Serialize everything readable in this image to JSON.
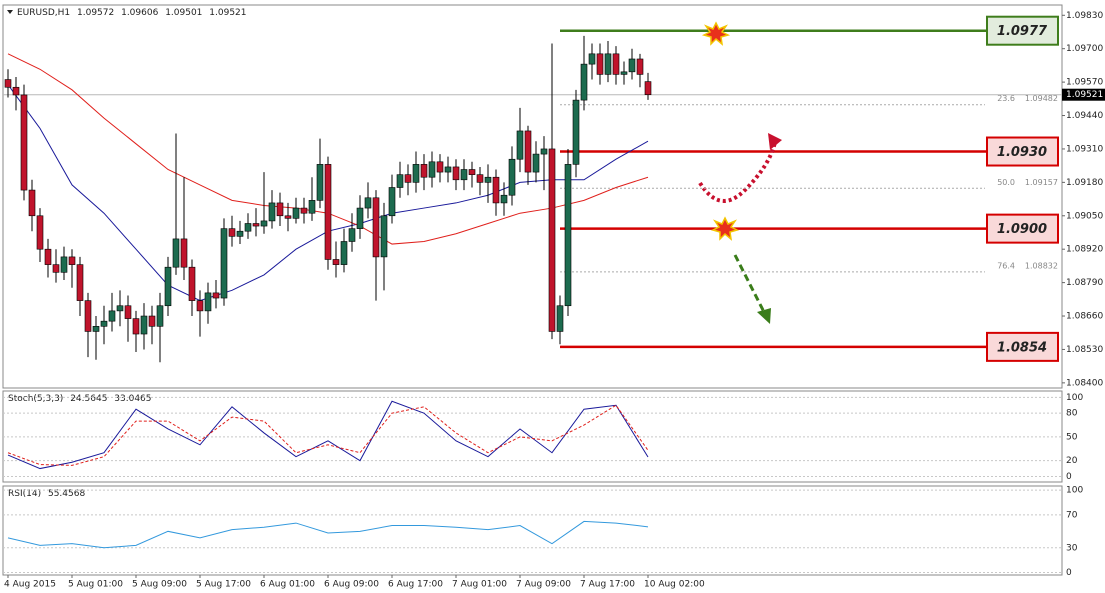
{
  "chart_data": {
    "type": "candlestick",
    "symbol": "EURUSD,H1",
    "categories": [
      "4 Aug 2015",
      null,
      null,
      null,
      null,
      null,
      null,
      null,
      "5 Aug 01:00",
      null,
      null,
      null,
      null,
      null,
      null,
      null,
      "5 Aug 09:00",
      null,
      null,
      null,
      null,
      null,
      null,
      null,
      "5 Aug 17:00",
      null,
      null,
      null,
      null,
      null,
      null,
      null,
      "6 Aug 01:00",
      null,
      null,
      null,
      null,
      null,
      null,
      null,
      "6 Aug 09:00",
      null,
      null,
      null,
      null,
      null,
      null,
      null,
      "6 Aug 17:00",
      null,
      null,
      null,
      null,
      null,
      null,
      null,
      "7 Aug 01:00",
      null,
      null,
      null,
      null,
      null,
      null,
      null,
      "7 Aug 09:00",
      null,
      null,
      null,
      null,
      null,
      null,
      null,
      "7 Aug 17:00",
      null,
      null,
      null,
      null,
      null,
      null,
      null,
      "10 Aug 02:00"
    ],
    "open": [
      1.0958,
      1.0955,
      1.0952,
      1.0915,
      1.0905,
      1.0892,
      1.0886,
      1.0883,
      1.0889,
      1.0886,
      1.0872,
      1.086,
      1.0862,
      1.0864,
      1.0868,
      1.087,
      1.0865,
      1.0859,
      1.0866,
      1.0862,
      1.087,
      1.0885,
      1.0896,
      1.0885,
      1.0872,
      1.0868,
      1.0875,
      1.0873,
      1.09,
      1.0897,
      1.0899,
      1.0902,
      1.0901,
      1.0903,
      1.091,
      1.0905,
      1.0904,
      1.0908,
      1.0906,
      1.0911,
      1.0925,
      1.0888,
      1.0886,
      1.0895,
      1.09,
      1.0908,
      1.0912,
      1.0889,
      1.0905,
      1.0916,
      1.0921,
      1.0918,
      1.0925,
      1.092,
      1.0926,
      1.0922,
      1.0924,
      1.0919,
      1.0923,
      1.0921,
      1.0918,
      1.092,
      1.091,
      1.0913,
      1.0927,
      1.0938,
      1.0922,
      1.0929,
      1.0931,
      1.086,
      1.087,
      1.0925,
      1.095,
      1.0964,
      1.0968,
      1.096,
      1.0968,
      1.096,
      1.0961,
      1.0966,
      1.09572
    ],
    "high": [
      1.0962,
      1.0959,
      1.0956,
      1.0919,
      1.0908,
      1.0896,
      1.0892,
      1.0893,
      1.0892,
      1.0889,
      1.0875,
      1.0866,
      1.087,
      1.0875,
      1.0876,
      1.0874,
      1.0868,
      1.0871,
      1.087,
      1.0875,
      1.0889,
      1.0937,
      1.092,
      1.0888,
      1.0876,
      1.0879,
      1.088,
      1.0904,
      1.0905,
      1.0903,
      1.0906,
      1.0908,
      1.0922,
      1.0915,
      1.0914,
      1.091,
      1.0912,
      1.0912,
      1.092,
      1.0935,
      1.0928,
      1.0895,
      1.09,
      1.0906,
      1.0913,
      1.0918,
      1.0915,
      1.091,
      1.0921,
      1.0926,
      1.0925,
      1.093,
      1.0929,
      1.093,
      1.0929,
      1.0928,
      1.0927,
      1.0927,
      1.0926,
      1.0924,
      1.0925,
      1.0923,
      1.0918,
      1.0932,
      1.0947,
      1.094,
      1.0934,
      1.0936,
      1.0972,
      1.0874,
      1.0931,
      1.0954,
      1.0975,
      1.0972,
      1.0972,
      1.0973,
      1.0971,
      1.0965,
      1.097,
      1.0968,
      1.09606
    ],
    "low": [
      1.0951,
      1.0946,
      1.0911,
      1.0899,
      1.0887,
      1.0881,
      1.0879,
      1.088,
      1.0877,
      1.0866,
      1.085,
      1.0849,
      1.0855,
      1.086,
      1.0862,
      1.0856,
      1.0852,
      1.0853,
      1.0855,
      1.0848,
      1.0866,
      1.0882,
      1.088,
      1.0866,
      1.0858,
      1.0863,
      1.0869,
      1.087,
      1.0893,
      1.0894,
      1.0896,
      1.0897,
      1.0898,
      1.09,
      1.0901,
      1.0899,
      1.0902,
      1.0902,
      1.0903,
      1.0908,
      1.0884,
      1.0881,
      1.0883,
      1.0891,
      1.0896,
      1.0904,
      1.0872,
      1.0876,
      1.0902,
      1.0912,
      1.0913,
      1.0914,
      1.0915,
      1.0916,
      1.0918,
      1.0918,
      1.0915,
      1.0915,
      1.0916,
      1.0913,
      1.091,
      1.0905,
      1.0905,
      1.0909,
      1.0922,
      1.0917,
      1.0918,
      1.0915,
      1.0857,
      1.0855,
      1.0866,
      1.092,
      1.0946,
      1.0958,
      1.0956,
      1.0957,
      1.0956,
      1.0956,
      1.0958,
      1.0955,
      1.09501
    ],
    "close": [
      1.0955,
      1.0952,
      1.0915,
      1.0905,
      1.0892,
      1.0886,
      1.0883,
      1.0889,
      1.0886,
      1.0872,
      1.086,
      1.0862,
      1.0864,
      1.0868,
      1.087,
      1.0865,
      1.0859,
      1.0866,
      1.0862,
      1.087,
      1.0885,
      1.0896,
      1.0885,
      1.0872,
      1.0868,
      1.0875,
      1.0873,
      1.09,
      1.0897,
      1.0899,
      1.0902,
      1.0901,
      1.0903,
      1.091,
      1.0905,
      1.0904,
      1.0908,
      1.0906,
      1.0911,
      1.0925,
      1.0888,
      1.0886,
      1.0895,
      1.09,
      1.0908,
      1.0912,
      1.0889,
      1.0905,
      1.0916,
      1.0921,
      1.0918,
      1.0925,
      1.092,
      1.0926,
      1.0922,
      1.0924,
      1.0919,
      1.0923,
      1.0921,
      1.0918,
      1.092,
      1.091,
      1.0913,
      1.0927,
      1.0938,
      1.0922,
      1.0929,
      1.0931,
      1.086,
      1.087,
      1.0925,
      1.095,
      1.0964,
      1.0968,
      1.096,
      1.0968,
      1.096,
      1.0961,
      1.0966,
      1.096,
      1.09521
    ],
    "colors": {
      "up": "#1d6b4f",
      "down": "#c0142c"
    },
    "ylim": [
      1.0838,
      1.0987
    ],
    "yticks": [
      {
        "value": 1.0983,
        "label": "1.09830"
      },
      {
        "value": 1.097,
        "label": "1.09700"
      },
      {
        "value": 1.0957,
        "label": "1.09570"
      },
      {
        "value": 1.0944,
        "label": "1.09440"
      },
      {
        "value": 1.0931,
        "label": "1.09310"
      },
      {
        "value": 1.0918,
        "label": "1.09180"
      },
      {
        "value": 1.0905,
        "label": "1.09050"
      },
      {
        "value": 1.0892,
        "label": "1.08920"
      },
      {
        "value": 1.0879,
        "label": "1.08790"
      },
      {
        "value": 1.0866,
        "label": "1.08660"
      },
      {
        "value": 1.0853,
        "label": "1.08530"
      },
      {
        "value": 1.084,
        "label": "1.08400"
      }
    ],
    "moving_averages": [
      {
        "color": "#1a1a9a",
        "x": [
          0,
          4,
          8,
          12,
          16,
          20,
          24,
          28,
          32,
          36,
          40,
          44,
          48,
          52,
          56,
          60,
          64,
          68,
          72,
          76,
          80
        ],
        "values": [
          1.0956,
          1.0939,
          1.0917,
          1.0906,
          1.0892,
          1.0878,
          1.0872,
          1.0876,
          1.0882,
          1.0892,
          1.0899,
          1.0902,
          1.0906,
          1.0908,
          1.091,
          1.0913,
          1.0918,
          1.0919,
          1.0919,
          1.0927,
          1.0934
        ]
      },
      {
        "color": "#e0201c",
        "x": [
          0,
          4,
          8,
          12,
          16,
          20,
          24,
          28,
          32,
          36,
          40,
          44,
          48,
          52,
          56,
          60,
          64,
          68,
          72,
          76,
          80
        ],
        "values": [
          1.0968,
          1.0962,
          1.0954,
          1.0943,
          1.0933,
          1.0923,
          1.0917,
          1.0911,
          1.0909,
          1.0908,
          1.0906,
          1.0901,
          1.0894,
          1.0895,
          1.0898,
          1.0902,
          1.0906,
          1.0908,
          1.0911,
          1.0916,
          1.092
        ]
      }
    ],
    "levels": [
      {
        "price": 1.0977,
        "color": "#3f7d1c"
      },
      {
        "price": {
          "value": 1.093,
          "label": "1.0930"
        },
        "color": "#d40000"
      },
      {
        "price": {
          "value": 1.09,
          "label": "1.0900"
        },
        "color": "#d40000"
      },
      {
        "price": 1.0854,
        "color": "#d40000"
      }
    ],
    "fibonacci": [
      {
        "label": "23.6",
        "price": 1.09482
      },
      {
        "label": "50.0",
        "price": 1.09157
      },
      {
        "label": "76.4",
        "price": 1.08832
      }
    ],
    "indicators": [
      {
        "type": "line",
        "name": "Stoch(5,3,3)",
        "ylim": [
          -7,
          108
        ],
        "yticks": [
          100,
          80,
          50,
          20,
          0
        ],
        "series": [
          {
            "color": "#1a1a9a",
            "x": [
              0,
              4,
              8,
              12,
              16,
              20,
              24,
              28,
              32,
              36,
              40,
              44,
              48,
              52,
              56,
              60,
              64,
              68,
              72,
              76,
              80
            ],
            "values": [
              27,
              10,
              18,
              30,
              85,
              60,
              40,
              88,
              55,
              25,
              45,
              20,
              95,
              80,
              45,
              25,
              60,
              30,
              85,
              90,
              24.5645
            ]
          },
          {
            "color": "#e0201c",
            "dashed": true,
            "x": [
              0,
              4,
              8,
              12,
              16,
              20,
              24,
              28,
              32,
              36,
              40,
              44,
              48,
              52,
              56,
              60,
              64,
              68,
              72,
              76,
              80
            ],
            "values": [
              30,
              15,
              14,
              25,
              70,
              70,
              45,
              75,
              70,
              30,
              40,
              30,
              80,
              88,
              55,
              30,
              50,
              45,
              65,
              90,
              33.0465
            ]
          }
        ]
      },
      {
        "type": "line",
        "name": "RSI(14)",
        "ylim": [
          -3,
          105
        ],
        "yticks": [
          100,
          70,
          30,
          0
        ],
        "series": [
          {
            "color": "#3399dd",
            "x": [
              0,
              4,
              8,
              12,
              16,
              20,
              24,
              28,
              32,
              36,
              40,
              44,
              48,
              52,
              56,
              60,
              64,
              68,
              72,
              76,
              80
            ],
            "values": [
              42,
              33,
              35,
              30,
              33,
              50,
              42,
              52,
              55,
              60,
              48,
              50,
              57,
              57,
              55,
              52,
              57,
              35,
              62,
              60,
              55.4568
            ]
          }
        ]
      }
    ]
  }
}
